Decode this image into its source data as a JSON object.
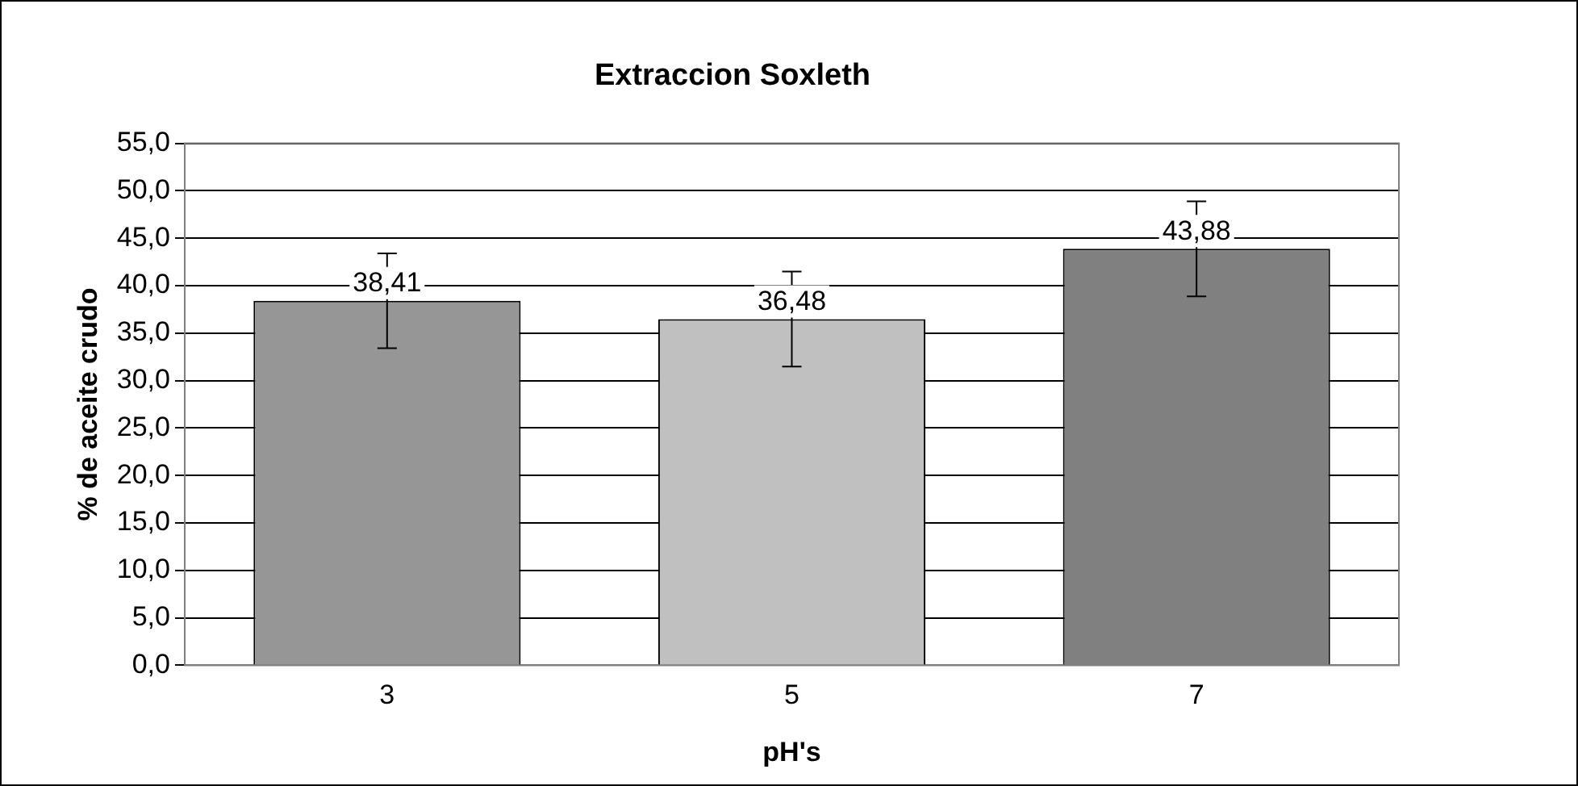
{
  "chart_data": {
    "type": "bar",
    "title": "Extraccion Soxleth",
    "xlabel": "pH's",
    "ylabel": "% de aceite crudo",
    "categories": [
      "3",
      "5",
      "7"
    ],
    "values": [
      38.41,
      36.48,
      43.88
    ],
    "colors": [
      "#969696",
      "#c0c0c0",
      "#808080"
    ],
    "errors": [
      5,
      5,
      5
    ],
    "value_labels": [
      "38,41",
      "36,48",
      "43,88"
    ],
    "ylim": [
      0,
      55
    ],
    "yticks": [
      {
        "value": 0,
        "label": "0,0"
      },
      {
        "value": 5,
        "label": "5,0"
      },
      {
        "value": 10,
        "label": "10,0"
      },
      {
        "value": 15,
        "label": "15,0"
      },
      {
        "value": 20,
        "label": "20,0"
      },
      {
        "value": 25,
        "label": "25,0"
      },
      {
        "value": 30,
        "label": "30,0"
      },
      {
        "value": 35,
        "label": "35,0"
      },
      {
        "value": 40,
        "label": "40,0"
      },
      {
        "value": 45,
        "label": "45,0"
      },
      {
        "value": 50,
        "label": "50,0"
      },
      {
        "value": 55,
        "label": "55,0"
      }
    ],
    "grid": "y",
    "legend": false
  }
}
